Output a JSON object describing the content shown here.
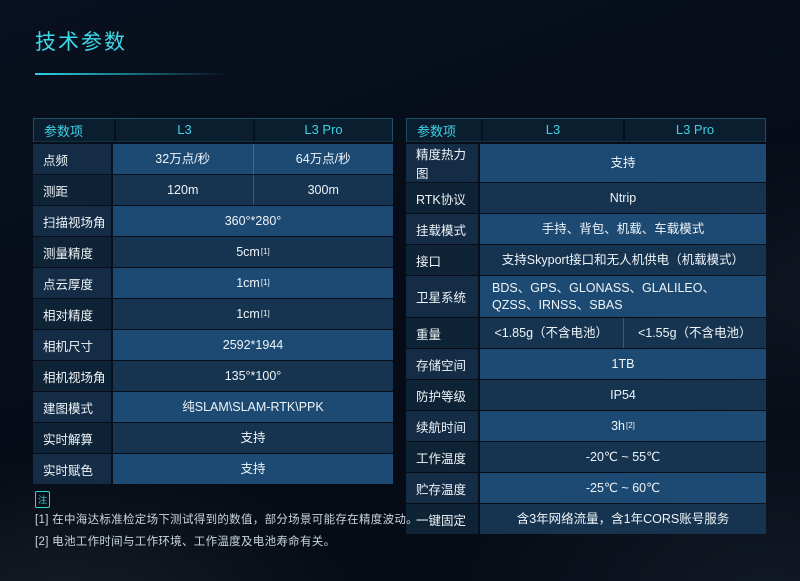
{
  "page": {
    "title": "技术参数"
  },
  "colors": {
    "accent": "#3ed8e8",
    "row_light": "#1d4a73",
    "row_dark": "#163450",
    "header_bg": "#0b1e2f"
  },
  "note": {
    "badge": "注",
    "lines": [
      "[1] 在中海达标准检定场下测试得到的数值，部分场景可能存在精度波动。",
      "[2] 电池工作时间与工作环境、工作温度及电池寿命有关。"
    ]
  },
  "tables": [
    {
      "name": "left",
      "headers": [
        "参数项",
        "L3",
        "L3 Pro"
      ],
      "rows": [
        {
          "label": "点频",
          "values": [
            "32万点/秒",
            "64万点/秒"
          ]
        },
        {
          "label": "测距",
          "values": [
            "120m",
            "300m"
          ]
        },
        {
          "label": "扫描视场角",
          "values": [
            "360°*280°"
          ]
        },
        {
          "label": "测量精度",
          "values": [
            "5cm"
          ],
          "sup": "[1]"
        },
        {
          "label": "点云厚度",
          "values": [
            "1cm"
          ],
          "sup": "[1]"
        },
        {
          "label": "相对精度",
          "values": [
            "1cm"
          ],
          "sup": "[1]"
        },
        {
          "label": "相机尺寸",
          "values": [
            "2592*1944"
          ]
        },
        {
          "label": "相机视场角",
          "values": [
            "135°*100°"
          ]
        },
        {
          "label": "建图模式",
          "values": [
            "纯SLAM\\SLAM-RTK\\PPK"
          ]
        },
        {
          "label": "实时解算",
          "values": [
            "支持"
          ]
        },
        {
          "label": "实时赋色",
          "values": [
            "支持"
          ]
        }
      ]
    },
    {
      "name": "right",
      "headers": [
        "参数项",
        "L3",
        "L3 Pro"
      ],
      "rows": [
        {
          "label": "精度热力图",
          "values": [
            "支持"
          ]
        },
        {
          "label": "RTK协议",
          "values": [
            "Ntrip"
          ]
        },
        {
          "label": "挂载模式",
          "values": [
            "手持、背包、机载、车载模式"
          ]
        },
        {
          "label": "接口",
          "values": [
            "支持Skyport接口和无人机供电（机载模式）"
          ]
        },
        {
          "label": "卫星系统",
          "values": [
            "BDS、GPS、GLONASS、GLALILEO、QZSS、IRNSS、SBAS"
          ],
          "tall": true,
          "align": "left"
        },
        {
          "label": "重量",
          "values": [
            "<1.85g（不含电池）",
            "<1.55g（不含电池）"
          ]
        },
        {
          "label": "存储空间",
          "values": [
            "1TB"
          ]
        },
        {
          "label": "防护等级",
          "values": [
            "IP54"
          ]
        },
        {
          "label": "续航时间",
          "values": [
            "3h"
          ],
          "sup": "[2]"
        },
        {
          "label": "工作温度",
          "values": [
            "-20℃ ~ 55℃"
          ]
        },
        {
          "label": "贮存温度",
          "values": [
            "-25℃ ~ 60℃"
          ]
        },
        {
          "label": "一键固定",
          "values": [
            "含3年网络流量，含1年CORS账号服务"
          ]
        }
      ]
    }
  ]
}
